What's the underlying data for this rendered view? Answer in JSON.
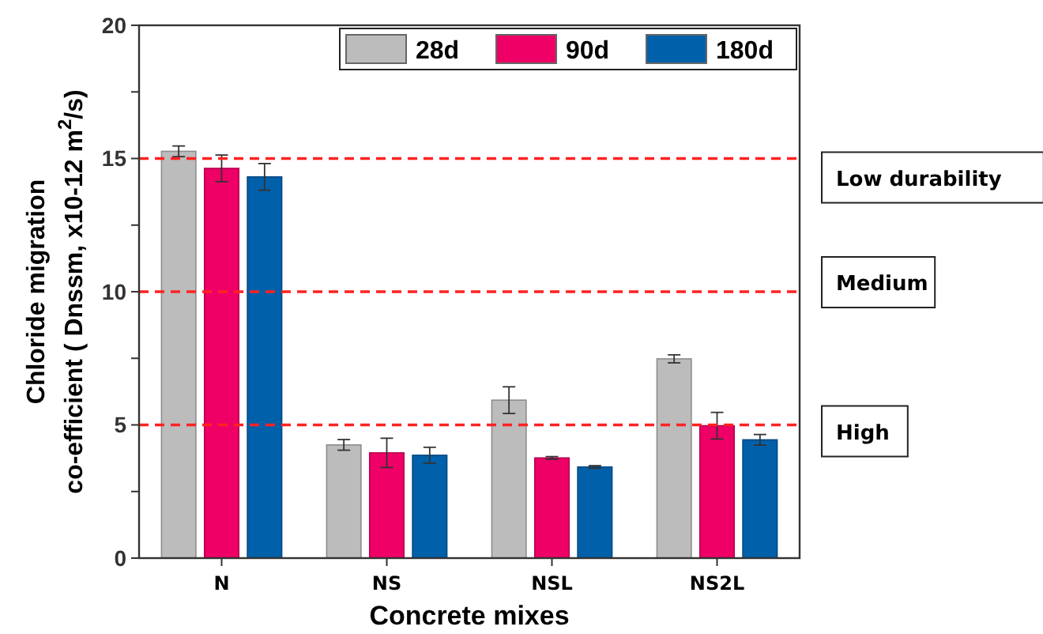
{
  "chart_data": {
    "type": "bar",
    "xlabel": "Concrete mixes",
    "ylabel": "Chloride migration\nco-efficient ( Dnssm, x10-12 m$^{2}$/s)",
    "categories": [
      "N",
      "NS",
      "NSL",
      "NS2L"
    ],
    "series": [
      {
        "name": "28d",
        "color": "#bcbcbc",
        "values": [
          15.27,
          4.25,
          5.93,
          7.48
        ],
        "errors": [
          0.2,
          0.2,
          0.5,
          0.15
        ]
      },
      {
        "name": "90d",
        "color": "#ee0066",
        "values": [
          14.63,
          3.95,
          3.76,
          4.97
        ],
        "errors": [
          0.5,
          0.55,
          0.05,
          0.5
        ]
      },
      {
        "name": "180d",
        "color": "#0060aa",
        "values": [
          14.31,
          3.86,
          3.42,
          4.44
        ],
        "errors": [
          0.5,
          0.3,
          0.05,
          0.2
        ]
      }
    ],
    "ylim": [
      0,
      20
    ],
    "yticks": [
      0,
      {
        "value": 2.5,
        "label": null
      },
      5,
      {
        "value": 7.5,
        "label": null
      },
      10,
      {
        "value": 12.5,
        "label": null
      },
      15,
      {
        "value": 17.5,
        "label": null
      },
      20
    ],
    "ref_lines": [
      {
        "axis": "y",
        "value": 15,
        "label": "Low durability",
        "color": "#ff2222",
        "line_style": "dashed"
      },
      {
        "axis": "y",
        "value": 10,
        "label": "Medium",
        "color": "#ff2222",
        "line_style": "dashed"
      },
      {
        "axis": "y",
        "value": 5,
        "label": "High",
        "color": "#ff2222",
        "line_style": "dashed"
      }
    ],
    "legend": "top right",
    "grid": false
  }
}
